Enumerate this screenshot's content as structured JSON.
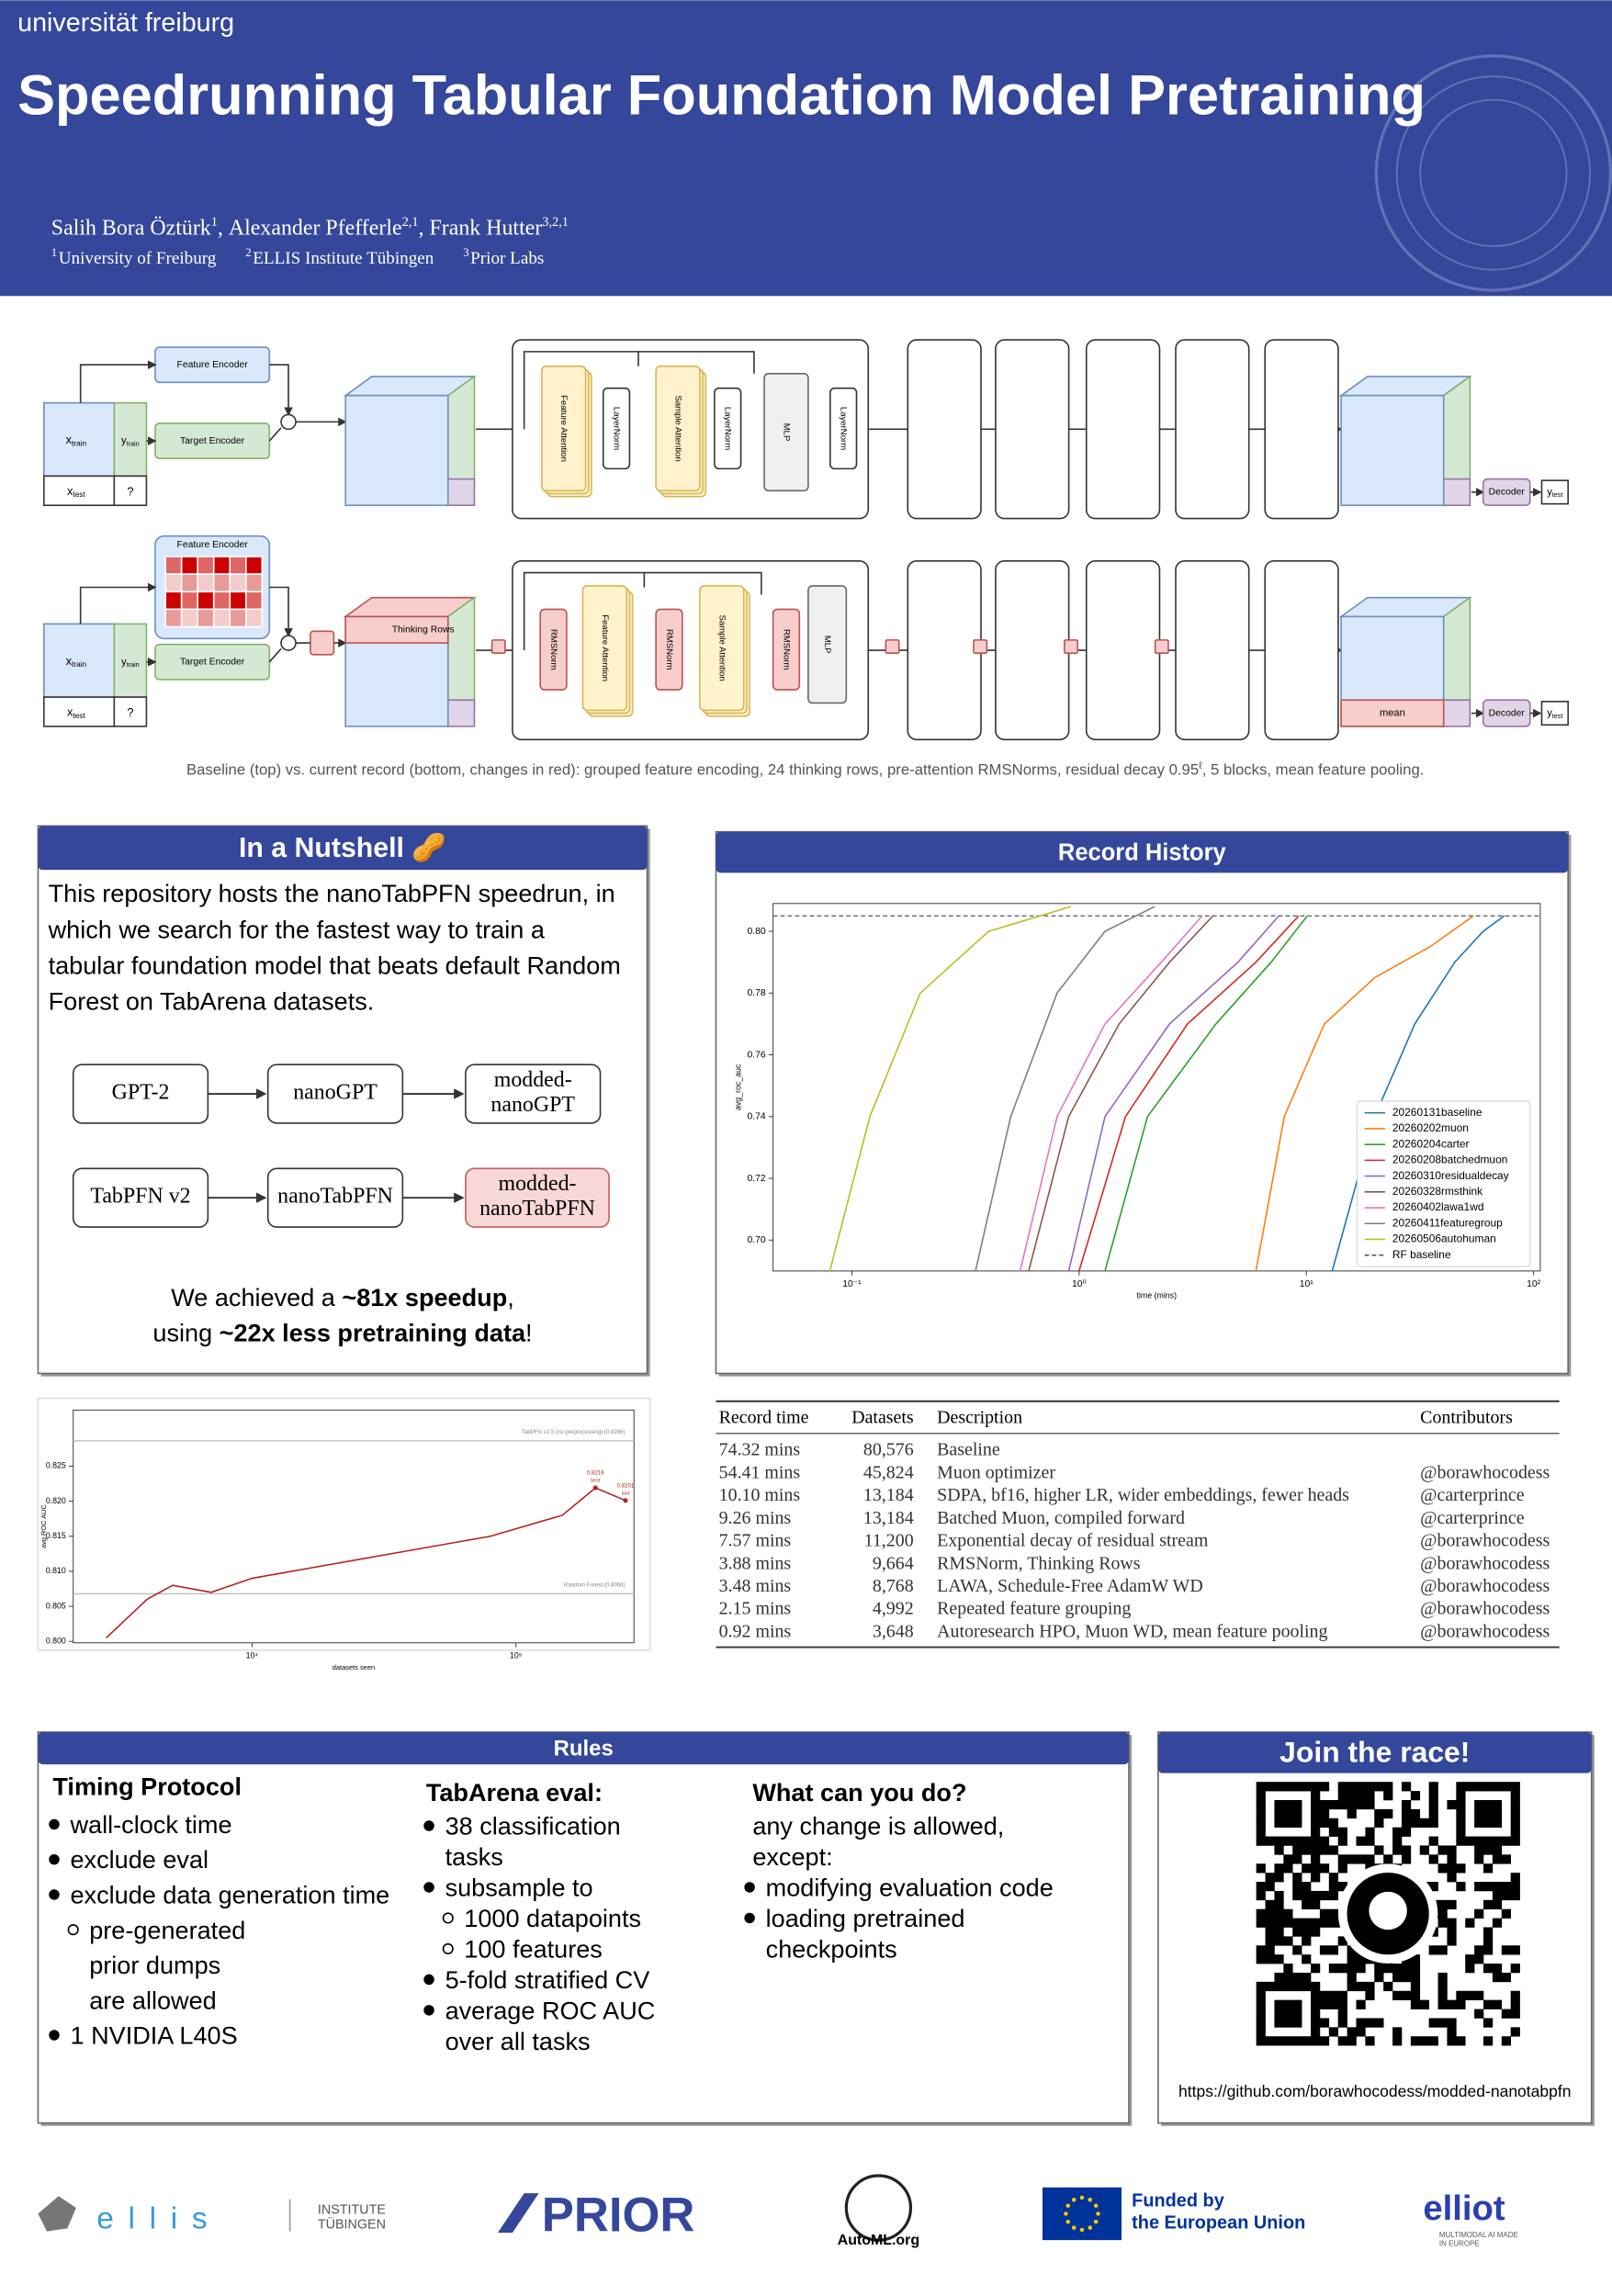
{
  "header": {
    "logo": "universität freiburg",
    "title": "Speedrunning Tabular Foundation Model Pretraining",
    "separator": ", ",
    "authors": [
      {
        "name": "Salih Bora Öztürk",
        "sup": "1"
      },
      {
        "name": "Alexander Pfefferle",
        "sup": "2,1"
      },
      {
        "name": "Frank Hutter",
        "sup": "3,2,1"
      }
    ],
    "affiliations": [
      {
        "sup": "1",
        "name": "University of Freiburg"
      },
      {
        "sup": "2",
        "name": "ELLIS Institute Tübingen"
      },
      {
        "sup": "3",
        "name": "Prior Labs"
      }
    ]
  },
  "diagram": {
    "feature_encoder": "Feature Encoder",
    "target_encoder": "Target Encoder",
    "x": "x",
    "y": "y",
    "train": "train",
    "test": "test",
    "unknown": "?",
    "feature_attention": "Feature Attention",
    "layernorm": "LayerNorm",
    "sample_attention": "Sample Attention",
    "mlp": "MLP",
    "rmsnorm": "RMSNorm",
    "thinking_rows": "Thinking Rows",
    "mean": "mean",
    "decoder": "Decoder",
    "caption": {
      "text": "Baseline (top) vs. current record (bottom, changes in red): grouped feature encoding, 24 thinking rows, pre-attention RMSNorms, residual decay 0.95",
      "sup": "ℓ",
      "rest": ", 5 blocks, mean feature pooling."
    }
  },
  "nutshell": {
    "title": "In a Nutshell 🥜",
    "lines": [
      "This repository hosts the nanoTabPFN speedrun, in",
      "which we search for the fastest way to train a",
      "tabular foundation model that beats default Random",
      "Forest on TabArena datasets."
    ],
    "flows": [
      [
        [
          "GPT-2"
        ],
        [
          "nanoGPT"
        ],
        [
          "modded-",
          "nanoGPT"
        ]
      ],
      [
        [
          "TabPFN v2"
        ],
        [
          "nanoTabPFN"
        ],
        [
          "modded-",
          "nanoTabPFN"
        ]
      ]
    ],
    "achievement": [
      [
        {
          "text": "We achieved a ",
          "bold": false
        },
        {
          "text": "~81x speedup",
          "bold": true
        },
        {
          "text": ",",
          "bold": false
        }
      ],
      [
        {
          "text": "using ",
          "bold": false
        },
        {
          "text": "~22x less pretraining data",
          "bold": true
        },
        {
          "text": "!",
          "bold": false
        }
      ]
    ]
  },
  "record_history_title": "Record History",
  "chart_data": [
    {
      "type": "line",
      "xlabel": "time (mins)",
      "ylabel": "avg_roc_auc",
      "xscale": "log",
      "xlim": [
        0.045,
        107
      ],
      "ylim": [
        0.69,
        0.809
      ],
      "xticks": [
        {
          "value": 0.1,
          "label": "10⁻¹"
        },
        {
          "value": 1,
          "label": "10⁰"
        },
        {
          "value": 10,
          "label": "10¹"
        },
        {
          "value": 100,
          "label": "10²"
        }
      ],
      "yticks": [
        {
          "value": 0.7,
          "label": "0.70"
        },
        {
          "value": 0.72,
          "label": "0.72"
        },
        {
          "value": 0.74,
          "label": "0.74"
        },
        {
          "value": 0.76,
          "label": "0.76"
        },
        {
          "value": 0.78,
          "label": "0.78"
        },
        {
          "value": 0.8,
          "label": "0.80"
        }
      ],
      "grid": false,
      "legend": "lower right",
      "series": [
        {
          "name": "20260131baseline",
          "color": "#1f77b4",
          "x": [
            13,
            20,
            30,
            45,
            60,
            74.32
          ],
          "values": [
            0.69,
            0.74,
            0.77,
            0.79,
            0.8,
            0.805
          ]
        },
        {
          "name": "20260202muon",
          "color": "#ff7f0e",
          "x": [
            6,
            8,
            12,
            20,
            35,
            54.41
          ],
          "values": [
            0.69,
            0.74,
            0.77,
            0.785,
            0.795,
            0.805
          ]
        },
        {
          "name": "20260204carter",
          "color": "#2ca02c",
          "x": [
            1.3,
            2,
            4,
            7,
            10.1
          ],
          "values": [
            0.69,
            0.74,
            0.77,
            0.79,
            0.805
          ]
        },
        {
          "name": "20260208batchedmuon",
          "color": "#d62728",
          "x": [
            1.0,
            1.6,
            3,
            6,
            9.26
          ],
          "values": [
            0.69,
            0.74,
            0.77,
            0.79,
            0.805
          ]
        },
        {
          "name": "20260310residualdecay",
          "color": "#9467bd",
          "x": [
            0.9,
            1.3,
            2.5,
            5,
            7.57
          ],
          "values": [
            0.69,
            0.74,
            0.77,
            0.79,
            0.805
          ]
        },
        {
          "name": "20260328rmsthink",
          "color": "#8c564b",
          "x": [
            0.6,
            0.9,
            1.5,
            2.5,
            3.88
          ],
          "values": [
            0.69,
            0.74,
            0.77,
            0.79,
            0.805
          ]
        },
        {
          "name": "20260402lawa1wd",
          "color": "#e377c2",
          "x": [
            0.55,
            0.8,
            1.3,
            2.3,
            3.48
          ],
          "values": [
            0.69,
            0.74,
            0.77,
            0.79,
            0.805
          ]
        },
        {
          "name": "20260411featuregroup",
          "color": "#7f7f7f",
          "x": [
            0.35,
            0.5,
            0.8,
            1.3,
            2.15
          ],
          "values": [
            0.69,
            0.74,
            0.78,
            0.8,
            0.808
          ]
        },
        {
          "name": "20260506autohuman",
          "color": "#bcbd22",
          "x": [
            0.08,
            0.12,
            0.2,
            0.4,
            0.92
          ],
          "values": [
            0.69,
            0.74,
            0.78,
            0.8,
            0.808
          ]
        }
      ],
      "hlines": [
        {
          "name": "RF baseline",
          "value": 0.805,
          "color": "#555555",
          "dashed": true
        }
      ]
    },
    {
      "type": "line",
      "xlabel": "datasets seen",
      "ylabel": "avg ROC AUC",
      "xscale": "log",
      "xlim": [
        2100,
        280000
      ],
      "ylim": [
        0.7998,
        0.833
      ],
      "xticks": [
        {
          "value": 10000,
          "label": "10⁴"
        },
        {
          "value": 100000,
          "label": "10⁵"
        }
      ],
      "yticks": [
        {
          "value": 0.8,
          "label": "0.800"
        },
        {
          "value": 0.805,
          "label": "0.805"
        },
        {
          "value": 0.81,
          "label": "0.810"
        },
        {
          "value": 0.815,
          "label": "0.815"
        },
        {
          "value": 0.82,
          "label": "0.820"
        },
        {
          "value": 0.825,
          "label": "0.825"
        }
      ],
      "grid": false,
      "series": [
        {
          "color": "#b22222",
          "x": [
            2800,
            4000,
            5000,
            7000,
            10000,
            20000,
            40000,
            80000,
            150000,
            200000,
            260000
          ],
          "values": [
            0.8005,
            0.806,
            0.808,
            0.807,
            0.809,
            0.811,
            0.813,
            0.815,
            0.818,
            0.8219,
            0.8201
          ]
        }
      ],
      "hlines": [
        {
          "name": "TabPFN v2.5 (no preprocessing) (0.8286)",
          "value": 0.8286,
          "color": "#bbbbbb",
          "dashed": false
        },
        {
          "name": "Random Forest (0.8068)",
          "value": 0.8068,
          "color": "#bbbbbb",
          "dashed": false
        }
      ],
      "points": [
        {
          "label": "0.8219",
          "note": "best",
          "x": 200000,
          "value": 0.8219
        },
        {
          "label": "0.8201",
          "note": "last",
          "x": 260000,
          "value": 0.8201
        }
      ]
    }
  ],
  "table": {
    "header": [
      "Record time",
      "Datasets",
      "Description",
      "Contributors"
    ],
    "rows": [
      [
        "74.32 mins",
        "80,576",
        "Baseline",
        ""
      ],
      [
        "54.41 mins",
        "45,824",
        "Muon optimizer",
        "@borawhocodess"
      ],
      [
        "10.10 mins",
        "13,184",
        "SDPA, bf16, higher LR, wider embeddings, fewer heads",
        "@carterprince"
      ],
      [
        "9.26 mins",
        "13,184",
        "Batched Muon, compiled forward",
        "@carterprince"
      ],
      [
        "7.57 mins",
        "11,200",
        "Exponential decay of residual stream",
        "@borawhocodess"
      ],
      [
        "3.88 mins",
        "9,664",
        "RMSNorm, Thinking Rows",
        "@borawhocodess"
      ],
      [
        "3.48 mins",
        "8,768",
        "LAWA, Schedule-Free AdamW WD",
        "@borawhocodess"
      ],
      [
        "2.15 mins",
        "4,992",
        "Repeated feature grouping",
        "@borawhocodess"
      ],
      [
        "0.92 mins",
        "3,648",
        "Autoresearch HPO, Muon WD, mean feature pooling",
        "@borawhocodess"
      ]
    ]
  },
  "rules": {
    "title": "Rules",
    "columns": [
      {
        "title": "Timing Protocol",
        "items": [
          {
            "level": 1,
            "lines": [
              "wall-clock time"
            ]
          },
          {
            "level": 1,
            "lines": [
              "exclude eval"
            ]
          },
          {
            "level": 1,
            "lines": [
              "exclude data generation time"
            ]
          },
          {
            "level": 2,
            "lines": [
              "pre-generated",
              "prior dumps",
              "are allowed"
            ]
          },
          {
            "level": 1,
            "lines": [
              "1 NVIDIA L40S"
            ]
          }
        ]
      },
      {
        "title": "TabArena eval:",
        "items": [
          {
            "level": 1,
            "lines": [
              "38 classification",
              "tasks"
            ]
          },
          {
            "level": 1,
            "lines": [
              "subsample to"
            ]
          },
          {
            "level": 2,
            "lines": [
              "1000 datapoints"
            ]
          },
          {
            "level": 2,
            "lines": [
              "100 features"
            ]
          },
          {
            "level": 1,
            "lines": [
              "5-fold stratified CV"
            ]
          },
          {
            "level": 1,
            "lines": [
              "average ROC AUC",
              "over all tasks"
            ]
          }
        ]
      },
      {
        "title": "What can you do?",
        "items": [
          {
            "level": 0,
            "lines": [
              "any change is allowed,",
              "except:"
            ]
          },
          {
            "level": 1,
            "lines": [
              "modifying evaluation code"
            ]
          },
          {
            "level": 1,
            "lines": [
              "loading pretrained",
              "checkpoints"
            ]
          }
        ]
      }
    ]
  },
  "join": {
    "title": "Join the race!",
    "url": "https://github.com/borawhocodess/modded-nanotabpfn"
  },
  "footer": {
    "ellis": "e l l i s",
    "institute": [
      "INSTITUTE",
      "TÜBINGEN"
    ],
    "prior": "PRIOR",
    "automl": "AutoML.org",
    "eu": [
      "Funded by",
      "the European Union"
    ],
    "elliot": "elliot",
    "elliot_tag": [
      "MULTIMODAL AI MADE",
      "IN EUROPE"
    ]
  }
}
